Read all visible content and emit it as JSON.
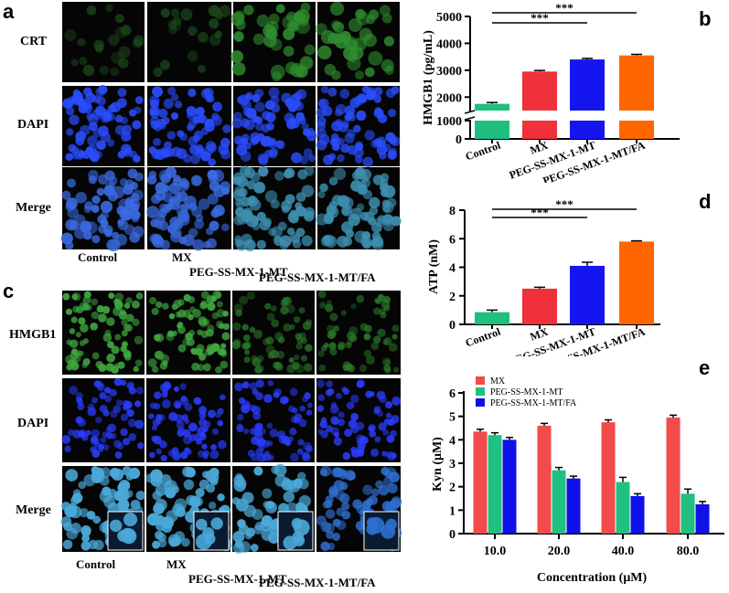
{
  "panels": {
    "a": {
      "letter": "a",
      "row_labels": [
        "CRT",
        "DAPI",
        "Merge"
      ],
      "col_labels": [
        "Control",
        "MX",
        "PEG-SS-MX-1-MT",
        "PEG-SS-MX-1-MT/FA"
      ]
    },
    "c": {
      "letter": "c",
      "row_labels": [
        "HMGB1",
        "DAPI",
        "Merge"
      ],
      "col_labels": [
        "Control",
        "MX",
        "PEG-SS-MX-1-MT",
        "PEG-SS-MX-1-MT/FA"
      ]
    },
    "b_letter": "b",
    "d_letter": "d",
    "e_letter": "e"
  },
  "colors": {
    "green_bar": "#1fbf80",
    "red_bar": "#f0303a",
    "blue_bar": "#1515f0",
    "orange_bar": "#ff6600",
    "e_red": "#f24b4b",
    "e_green": "#20c080",
    "e_blue": "#1010e8"
  },
  "chart_data": [
    {
      "id": "b",
      "type": "bar",
      "title": "",
      "ylabel": "HMGB1 (pg/mL)",
      "xlabel": "",
      "categories": [
        "Control",
        "MX",
        "PEG-SS-MX-1-MT",
        "PEG-SS-MX-1-MT/FA"
      ],
      "values": [
        1750,
        2950,
        3400,
        3550
      ],
      "errors": [
        50,
        40,
        40,
        40
      ],
      "axis_break": [
        1000,
        1500
      ],
      "ylim": [
        0,
        5000
      ],
      "yticks": [
        "0",
        "1000",
        "2000",
        "3000",
        "4000",
        "5000"
      ],
      "significance": [
        {
          "from": "Control",
          "to": "PEG-SS-MX-1-MT",
          "label": "***"
        },
        {
          "from": "Control",
          "to": "PEG-SS-MX-1-MT/FA",
          "label": "***"
        }
      ]
    },
    {
      "id": "d",
      "type": "bar",
      "title": "",
      "ylabel": "ATP (nM)",
      "xlabel": "",
      "categories": [
        "Control",
        "MX",
        "PEG-SS-MX-1-MT",
        "PEG-SS-MX-1-MT/FA"
      ],
      "values": [
        0.85,
        2.5,
        4.1,
        5.8
      ],
      "errors": [
        0.15,
        0.1,
        0.25,
        0.05
      ],
      "ylim": [
        0,
        8
      ],
      "yticks": [
        "0",
        "2",
        "4",
        "6",
        "8"
      ],
      "significance": [
        {
          "from": "Control",
          "to": "PEG-SS-MX-1-MT",
          "label": "***"
        },
        {
          "from": "Control",
          "to": "PEG-SS-MX-1-MT/FA",
          "label": "***"
        }
      ]
    },
    {
      "id": "e",
      "type": "bar",
      "title": "",
      "ylabel": "Kyn (μM)",
      "xlabel": "Concentration (μM)",
      "categories": [
        "10.0",
        "20.0",
        "40.0",
        "80.0"
      ],
      "series": [
        {
          "name": "MX",
          "values": [
            4.35,
            4.6,
            4.75,
            4.95
          ],
          "errors": [
            0.1,
            0.1,
            0.1,
            0.1
          ]
        },
        {
          "name": "PEG-SS-MX-1-MT",
          "values": [
            4.2,
            2.7,
            2.2,
            1.7
          ],
          "errors": [
            0.1,
            0.12,
            0.2,
            0.2
          ]
        },
        {
          "name": "PEG-SS-MX-1-MT/FA",
          "values": [
            4.0,
            2.35,
            1.6,
            1.25
          ],
          "errors": [
            0.1,
            0.1,
            0.1,
            0.12
          ]
        }
      ],
      "ylim": [
        0,
        6
      ],
      "yticks": [
        "0",
        "1",
        "2",
        "3",
        "4",
        "5",
        "6"
      ],
      "legend": "top-left"
    }
  ]
}
